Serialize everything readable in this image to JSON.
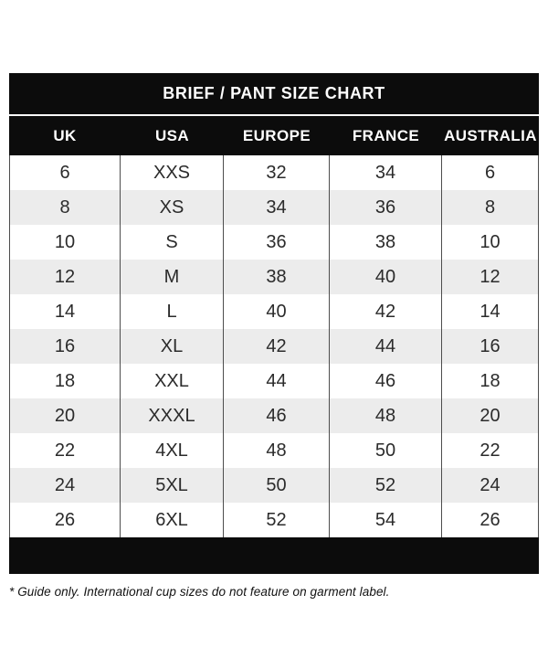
{
  "chart_data": {
    "type": "table",
    "title": "BRIEF / PANT SIZE CHART",
    "columns": [
      "UK",
      "USA",
      "EUROPE",
      "FRANCE",
      "AUSTRALIA"
    ],
    "rows": [
      [
        "6",
        "XXS",
        "32",
        "34",
        "6"
      ],
      [
        "8",
        "XS",
        "34",
        "36",
        "8"
      ],
      [
        "10",
        "S",
        "36",
        "38",
        "10"
      ],
      [
        "12",
        "M",
        "38",
        "40",
        "12"
      ],
      [
        "14",
        "L",
        "40",
        "42",
        "14"
      ],
      [
        "16",
        "XL",
        "42",
        "44",
        "16"
      ],
      [
        "18",
        "XXL",
        "44",
        "46",
        "18"
      ],
      [
        "20",
        "XXXL",
        "46",
        "48",
        "20"
      ],
      [
        "22",
        "4XL",
        "48",
        "50",
        "22"
      ],
      [
        "24",
        "5XL",
        "50",
        "52",
        "24"
      ],
      [
        "26",
        "6XL",
        "52",
        "54",
        "26"
      ]
    ],
    "footnote": "* Guide only. International cup sizes do not feature on garment label.",
    "layout": {
      "striped_rows": true,
      "stripe_pattern": "even rows shaded"
    }
  },
  "colors": {
    "header_bg": "#0c0c0c",
    "header_text": "#ffffff",
    "row_stripe": "#ececec",
    "cell_text": "#2b2b2b",
    "grid_border": "#4d4d4d",
    "page_bg": "#ffffff"
  }
}
